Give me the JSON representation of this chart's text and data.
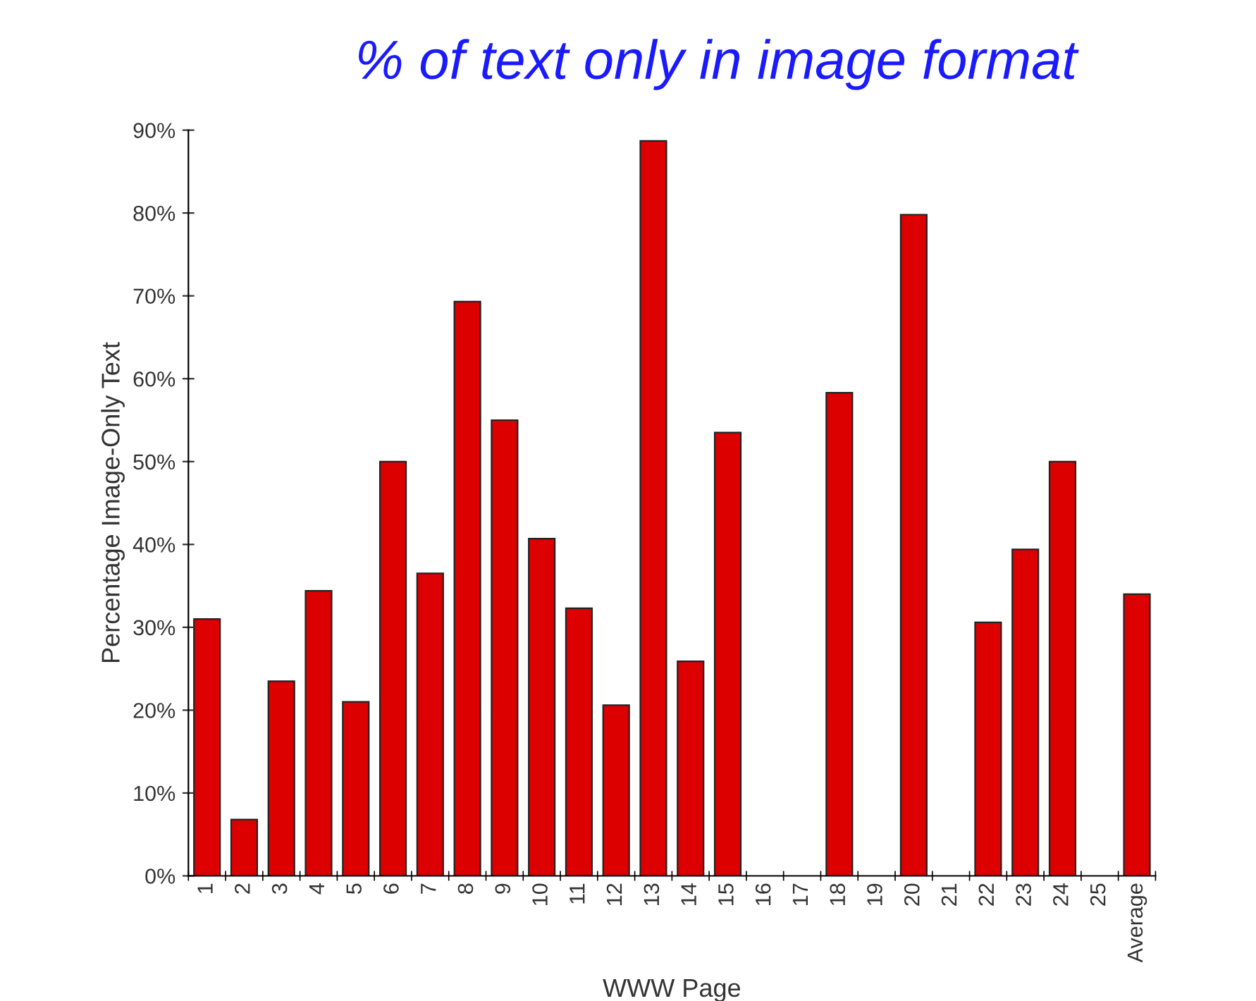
{
  "chart_data": {
    "type": "bar",
    "title": "% of text only in image format",
    "xlabel": "WWW Page",
    "ylabel": "Percentage Image-Only Text",
    "categories": [
      "1",
      "2",
      "3",
      "4",
      "5",
      "6",
      "7",
      "8",
      "9",
      "10",
      "11",
      "12",
      "13",
      "14",
      "15",
      "16",
      "17",
      "18",
      "19",
      "20",
      "21",
      "22",
      "23",
      "24",
      "25",
      "Average"
    ],
    "values": [
      31.0,
      6.8,
      23.5,
      34.4,
      21.0,
      50.0,
      36.5,
      69.3,
      55.0,
      40.7,
      32.3,
      20.6,
      88.7,
      25.9,
      53.5,
      null,
      null,
      58.3,
      null,
      79.8,
      null,
      30.6,
      39.4,
      50.0,
      null,
      34.0
    ],
    "color": "#dd0000",
    "ylim": [
      0,
      90
    ],
    "yticks": [
      {
        "value": 0,
        "label": "0%"
      },
      {
        "value": 10,
        "label": "10%"
      },
      {
        "value": 20,
        "label": "20%"
      },
      {
        "value": 30,
        "label": "30%"
      },
      {
        "value": 40,
        "label": "40%"
      },
      {
        "value": 50,
        "label": "50%"
      },
      {
        "value": 60,
        "label": "60%"
      },
      {
        "value": 70,
        "label": "70%"
      },
      {
        "value": 80,
        "label": "80%"
      },
      {
        "value": 90,
        "label": "90%"
      }
    ],
    "grid": false,
    "legend": false
  }
}
